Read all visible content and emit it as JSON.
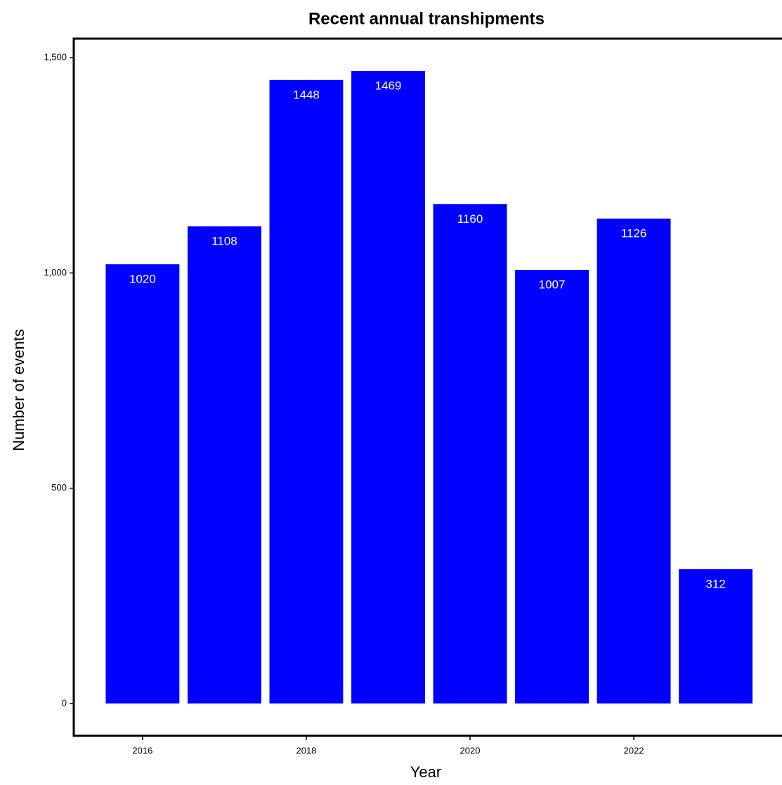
{
  "chart_data": {
    "type": "bar",
    "title": "Recent annual transhipments",
    "x_label": "Year",
    "y_label": "Number of events",
    "x": [
      2016,
      2017,
      2018,
      2019,
      2020,
      2021,
      2022,
      2023
    ],
    "values": [
      1020,
      1108,
      1448,
      1469,
      1160,
      1007,
      1126,
      312
    ],
    "color": "#0000ff",
    "xlim": [
      2015.16,
      2023.81
    ],
    "xticks": [
      2016,
      2018,
      2020,
      2022
    ],
    "ylim": [
      -75,
      1544
    ],
    "yticks": [
      0,
      500,
      {
        "value": 1000,
        "label": "1,000"
      },
      {
        "value": 1500,
        "label": "1,500"
      }
    ]
  }
}
